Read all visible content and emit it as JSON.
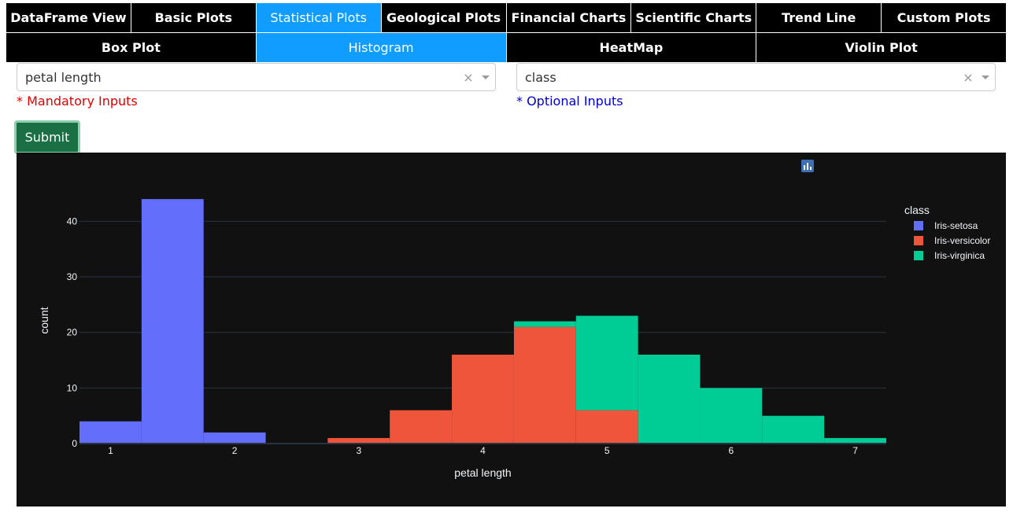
{
  "top_tabs": [
    {
      "label": "DataFrame View",
      "active": false
    },
    {
      "label": "Basic Plots",
      "active": false
    },
    {
      "label": "Statistical Plots",
      "active": true
    },
    {
      "label": "Geological Plots",
      "active": false
    },
    {
      "label": "Financial Charts",
      "active": false
    },
    {
      "label": "Scientific Charts",
      "active": false
    },
    {
      "label": "Trend Line",
      "active": false
    },
    {
      "label": "Custom Plots",
      "active": false
    }
  ],
  "sub_tabs": [
    {
      "label": "Box Plot",
      "active": false
    },
    {
      "label": "Histogram",
      "active": true
    },
    {
      "label": "HeatMap",
      "active": false
    },
    {
      "label": "Violin Plot",
      "active": false
    }
  ],
  "inputs": {
    "x_value": "petal length",
    "color_value": "class",
    "clear_symbol": "×",
    "mandatory_note": "* Mandatory Inputs",
    "optional_note": "* Optional Inputs"
  },
  "submit_label": "Submit",
  "modebar_icons": [
    "camera-icon",
    "zoom-icon",
    "pan-icon",
    "box-select-icon",
    "lasso-icon",
    "zoom-in-icon",
    "zoom-out-icon",
    "autoscale-icon",
    "reset-axes-icon",
    "plotly-logo-icon"
  ],
  "colors": {
    "accent": "#119dff",
    "plot_bg": "#111111",
    "submit_bg": "#1b6f44",
    "mandatory": "#e00000",
    "optional": "#0000cc"
  },
  "chart_data": {
    "type": "bar",
    "barmode": "stack",
    "xlabel": "petal length",
    "ylabel": "count",
    "x_ticks": [
      1,
      2,
      3,
      4,
      5,
      6,
      7
    ],
    "y_ticks": [
      0,
      10,
      20,
      30,
      40
    ],
    "xlim": [
      0.75,
      7.25
    ],
    "ylim": [
      0,
      46
    ],
    "bin_width": 0.5,
    "bin_starts": [
      0.75,
      1.25,
      1.75,
      2.25,
      2.75,
      3.25,
      3.75,
      4.25,
      4.75,
      5.25,
      5.75,
      6.25,
      6.75
    ],
    "legend_title": "class",
    "legend_position": "top-right",
    "grid": true,
    "series": [
      {
        "name": "Iris-setosa",
        "color": "#636efa",
        "values": [
          4,
          44,
          2,
          0,
          0,
          0,
          0,
          0,
          0,
          0,
          0,
          0,
          0
        ]
      },
      {
        "name": "Iris-versicolor",
        "color": "#ef553b",
        "values": [
          0,
          0,
          0,
          0,
          1,
          6,
          16,
          21,
          6,
          0,
          0,
          0,
          0
        ]
      },
      {
        "name": "Iris-virginica",
        "color": "#00cc96",
        "values": [
          0,
          0,
          0,
          0,
          0,
          0,
          0,
          1,
          17,
          16,
          10,
          5,
          1
        ]
      }
    ]
  }
}
